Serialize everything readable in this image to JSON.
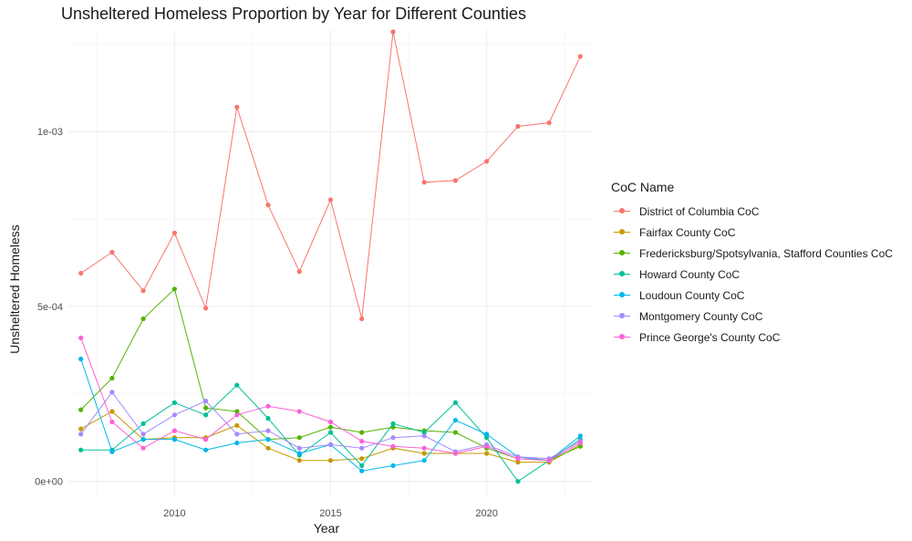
{
  "chart_data": {
    "type": "line",
    "title": "Unsheltered Homeless Proportion by Year for Different Counties",
    "xlabel": "Year",
    "ylabel": "Unsheltered Homeless",
    "xlim": [
      2006.6,
      2023.4
    ],
    "ylim": [
      -4e-05,
      0.00129
    ],
    "x_ticks": [
      2010,
      2015,
      2020
    ],
    "x_tick_labels": [
      "2010",
      "2015",
      "2020"
    ],
    "y_ticks": [
      0,
      0.0005,
      0.001
    ],
    "y_tick_labels": [
      "0e+00",
      "5e-04",
      "1e-03"
    ],
    "grid": true,
    "legend_position": "right",
    "legend_title": "CoC Name",
    "x": [
      2007,
      2008,
      2009,
      2010,
      2011,
      2012,
      2013,
      2014,
      2015,
      2016,
      2017,
      2018,
      2019,
      2020,
      2021,
      2022,
      2023
    ],
    "series": [
      {
        "name": "District of Columbia CoC",
        "color": "#F8766D",
        "values": [
          0.000595,
          0.000655,
          0.000545,
          0.00071,
          0.000495,
          0.00107,
          0.00079,
          0.0006,
          0.000805,
          0.000465,
          0.001285,
          0.000855,
          0.00086,
          0.000915,
          0.001015,
          0.001025,
          0.001215
        ]
      },
      {
        "name": "Fairfax County CoC",
        "color": "#C49A00",
        "values": [
          0.00015,
          0.0002,
          0.00012,
          0.000125,
          0.000125,
          0.00016,
          9.5e-05,
          6e-05,
          6e-05,
          6.5e-05,
          9.5e-05,
          8e-05,
          8e-05,
          8e-05,
          5.5e-05,
          5.5e-05,
          0.000105
        ]
      },
      {
        "name": "Fredericksburg/Spotsylvania, Stafford Counties CoC",
        "color": "#53B400",
        "values": [
          0.000205,
          0.000295,
          0.000465,
          0.00055,
          0.00021,
          0.0002,
          0.00012,
          0.000125,
          0.000155,
          0.00014,
          0.000155,
          0.000145,
          0.00014,
          9.5e-05,
          6.5e-05,
          6e-05,
          0.0001
        ]
      },
      {
        "name": "Howard County CoC",
        "color": "#00C094",
        "values": [
          9e-05,
          9e-05,
          0.000165,
          0.000225,
          0.00019,
          0.000275,
          0.00018,
          7.5e-05,
          0.00014,
          4.5e-05,
          0.000165,
          0.00014,
          0.000225,
          0.000125,
          0.0,
          6e-05,
          0.00012
        ]
      },
      {
        "name": "Loudoun County CoC",
        "color": "#00B6EB",
        "values": [
          0.00035,
          8.5e-05,
          0.00012,
          0.00012,
          9e-05,
          0.00011,
          0.00012,
          8e-05,
          0.000105,
          3e-05,
          4.5e-05,
          6e-05,
          0.000175,
          0.000135,
          7e-05,
          6e-05,
          0.00013
        ]
      },
      {
        "name": "Montgomery County CoC",
        "color": "#A58AFF",
        "values": [
          0.000135,
          0.000255,
          0.000135,
          0.00019,
          0.00023,
          0.000135,
          0.000145,
          9.5e-05,
          0.000105,
          9.5e-05,
          0.000125,
          0.00013,
          8.5e-05,
          0.000105,
          7e-05,
          6.5e-05,
          0.000115
        ]
      },
      {
        "name": "Prince George's County CoC",
        "color": "#FB61D7",
        "values": [
          0.00041,
          0.00017,
          9.5e-05,
          0.000145,
          0.00012,
          0.00019,
          0.000215,
          0.0002,
          0.00017,
          0.000115,
          0.0001,
          9.5e-05,
          8e-05,
          0.0001,
          6.5e-05,
          6e-05,
          0.00011
        ]
      }
    ]
  }
}
